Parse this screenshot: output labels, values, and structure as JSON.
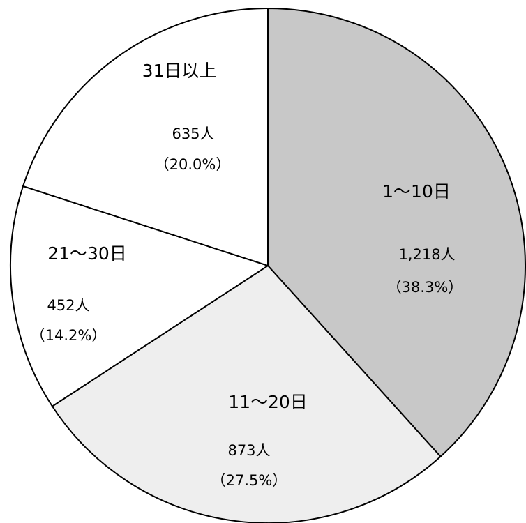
{
  "chart_data": {
    "type": "pie",
    "categories": [
      "1～10日",
      "11～20日",
      "21～30日",
      "31日以上"
    ],
    "counts": [
      "1,218人",
      "873人",
      "452人",
      "635人"
    ],
    "percent_labels": [
      "（38.3%）",
      "（27.5%）",
      "（14.2%）",
      "（20.0%）"
    ],
    "values": [
      38.3,
      27.5,
      14.2,
      20.0
    ],
    "start": "12 o'clock, clockwise",
    "colors": [
      "#c8c8c8",
      "#eeeeee",
      "#ffffff",
      "#ffffff"
    ],
    "title": "",
    "legend": "none"
  }
}
